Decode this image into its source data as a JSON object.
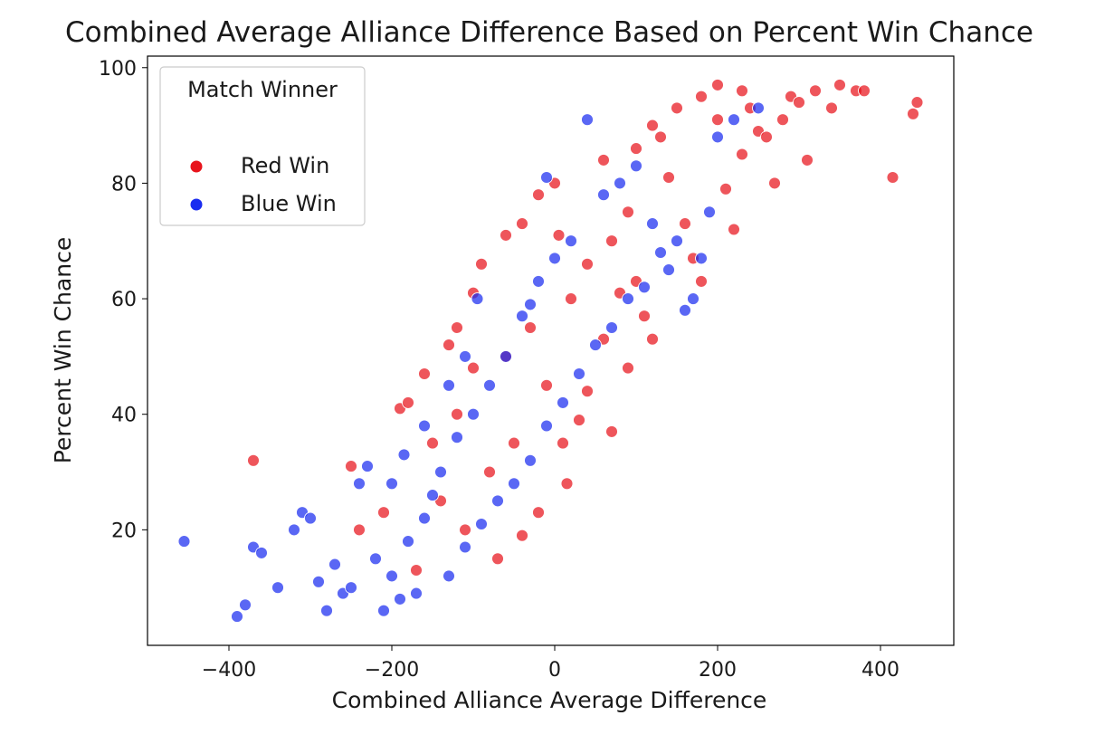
{
  "chart_data": {
    "type": "scatter",
    "title": "Combined Average Alliance Difference Based on Percent Win Chance",
    "xlabel": "Combined Alliance Average Difference",
    "ylabel": "Percent Win Chance",
    "xlim": [
      -500,
      490
    ],
    "ylim": [
      0,
      102
    ],
    "xticks": [
      -400,
      -200,
      0,
      200,
      400
    ],
    "yticks": [
      20,
      40,
      60,
      80,
      100
    ],
    "xtick_labels": [
      "−400",
      "−200",
      "0",
      "200",
      "400"
    ],
    "ytick_labels": [
      "20",
      "40",
      "60",
      "80",
      "100"
    ],
    "grid": false,
    "legend": {
      "title": "Match Winner",
      "placement": "top-left"
    },
    "series": [
      {
        "name": "Red Win",
        "color": "#e8141c",
        "points": [
          [
            -370,
            32
          ],
          [
            -250,
            31
          ],
          [
            -210,
            23
          ],
          [
            -240,
            20
          ],
          [
            -190,
            41
          ],
          [
            -180,
            42
          ],
          [
            -160,
            47
          ],
          [
            -130,
            52
          ],
          [
            -120,
            55
          ],
          [
            -100,
            61
          ],
          [
            -90,
            66
          ],
          [
            -60,
            71
          ],
          [
            -40,
            73
          ],
          [
            -20,
            78
          ],
          [
            0,
            80
          ],
          [
            5,
            71
          ],
          [
            10,
            35
          ],
          [
            15,
            28
          ],
          [
            30,
            39
          ],
          [
            40,
            44
          ],
          [
            60,
            53
          ],
          [
            70,
            37
          ],
          [
            80,
            61
          ],
          [
            90,
            48
          ],
          [
            100,
            63
          ],
          [
            110,
            57
          ],
          [
            120,
            53
          ],
          [
            130,
            88
          ],
          [
            140,
            81
          ],
          [
            160,
            73
          ],
          [
            170,
            67
          ],
          [
            180,
            63
          ],
          [
            200,
            91
          ],
          [
            210,
            79
          ],
          [
            220,
            72
          ],
          [
            230,
            85
          ],
          [
            240,
            93
          ],
          [
            250,
            89
          ],
          [
            260,
            88
          ],
          [
            270,
            80
          ],
          [
            280,
            91
          ],
          [
            290,
            95
          ],
          [
            300,
            94
          ],
          [
            310,
            84
          ],
          [
            320,
            96
          ],
          [
            340,
            93
          ],
          [
            350,
            97
          ],
          [
            370,
            96
          ],
          [
            380,
            96
          ],
          [
            415,
            81
          ],
          [
            440,
            92
          ],
          [
            445,
            94
          ],
          [
            200,
            97
          ],
          [
            230,
            96
          ],
          [
            180,
            95
          ],
          [
            150,
            93
          ],
          [
            120,
            90
          ],
          [
            100,
            86
          ],
          [
            60,
            84
          ],
          [
            -100,
            48
          ],
          [
            -60,
            50
          ],
          [
            -30,
            55
          ],
          [
            -80,
            30
          ],
          [
            -50,
            35
          ],
          [
            -10,
            45
          ],
          [
            20,
            60
          ],
          [
            40,
            66
          ],
          [
            70,
            70
          ],
          [
            90,
            75
          ],
          [
            -140,
            25
          ],
          [
            -110,
            20
          ],
          [
            -70,
            15
          ],
          [
            -40,
            19
          ],
          [
            -20,
            23
          ],
          [
            -150,
            35
          ],
          [
            -120,
            40
          ],
          [
            -170,
            13
          ]
        ]
      },
      {
        "name": "Blue Win",
        "color": "#1a2cf0",
        "points": [
          [
            -455,
            18
          ],
          [
            -390,
            5
          ],
          [
            -380,
            7
          ],
          [
            -370,
            17
          ],
          [
            -360,
            16
          ],
          [
            -340,
            10
          ],
          [
            -320,
            20
          ],
          [
            -310,
            23
          ],
          [
            -300,
            22
          ],
          [
            -290,
            11
          ],
          [
            -280,
            6
          ],
          [
            -260,
            9
          ],
          [
            -240,
            28
          ],
          [
            -230,
            31
          ],
          [
            -220,
            15
          ],
          [
            -200,
            12
          ],
          [
            -190,
            8
          ],
          [
            -180,
            18
          ],
          [
            -160,
            22
          ],
          [
            -150,
            26
          ],
          [
            -140,
            30
          ],
          [
            -120,
            36
          ],
          [
            -100,
            40
          ],
          [
            -80,
            45
          ],
          [
            -60,
            50
          ],
          [
            -40,
            57
          ],
          [
            -30,
            59
          ],
          [
            -20,
            63
          ],
          [
            -10,
            81
          ],
          [
            0,
            67
          ],
          [
            20,
            70
          ],
          [
            40,
            91
          ],
          [
            60,
            78
          ],
          [
            80,
            80
          ],
          [
            100,
            83
          ],
          [
            120,
            73
          ],
          [
            140,
            65
          ],
          [
            160,
            58
          ],
          [
            180,
            67
          ],
          [
            190,
            75
          ],
          [
            200,
            88
          ],
          [
            220,
            91
          ],
          [
            250,
            93
          ],
          [
            -270,
            14
          ],
          [
            -250,
            10
          ],
          [
            -210,
            6
          ],
          [
            -170,
            9
          ],
          [
            -130,
            12
          ],
          [
            -110,
            17
          ],
          [
            -90,
            21
          ],
          [
            -70,
            25
          ],
          [
            -50,
            28
          ],
          [
            -30,
            32
          ],
          [
            -10,
            38
          ],
          [
            10,
            42
          ],
          [
            30,
            47
          ],
          [
            50,
            52
          ],
          [
            70,
            55
          ],
          [
            90,
            60
          ],
          [
            110,
            62
          ],
          [
            130,
            68
          ],
          [
            150,
            70
          ],
          [
            170,
            60
          ],
          [
            -95,
            60
          ],
          [
            -110,
            50
          ],
          [
            -130,
            45
          ],
          [
            -160,
            38
          ],
          [
            -185,
            33
          ],
          [
            -200,
            28
          ]
        ]
      }
    ]
  }
}
